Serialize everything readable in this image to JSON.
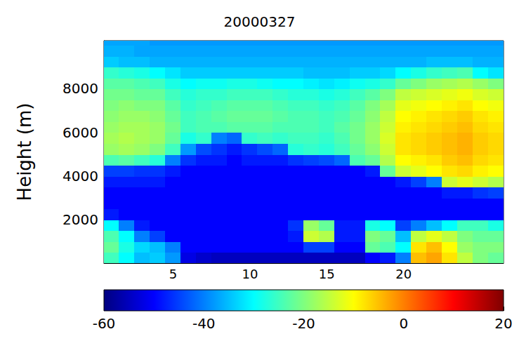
{
  "chart_data": {
    "type": "heatmap",
    "title": "20000327",
    "ylabel": "Height (m)",
    "xlim": [
      0.5,
      26.5
    ],
    "xticks": [
      5,
      10,
      15,
      20
    ],
    "ylim": [
      0,
      10200
    ],
    "yticks": [
      2000,
      4000,
      6000,
      8000
    ],
    "grid": false,
    "colorbar": {
      "range": [
        -60,
        20
      ],
      "ticks": [
        -60,
        -40,
        -20,
        0,
        20
      ]
    },
    "cells": {
      "x": [
        1,
        2,
        3,
        4,
        5,
        6,
        7,
        8,
        9,
        10,
        11,
        12,
        13,
        14,
        15,
        16,
        17,
        18,
        19,
        20,
        21,
        22,
        23,
        24,
        25,
        26
      ],
      "y": [
        250,
        750,
        1250,
        1750,
        2250,
        2750,
        3250,
        3750,
        4250,
        4750,
        5250,
        5750,
        6250,
        6750,
        7250,
        7750,
        8250,
        8750,
        9250,
        9750,
        10250
      ],
      "z": [
        [
          -25,
          -22,
          -24,
          -30,
          -48,
          -50,
          -50,
          -48,
          -45,
          -24,
          -18,
          -17,
          -18,
          -19,
          -20,
          -21,
          -23,
          -26,
          -34,
          -36,
          -37
        ],
        [
          -30,
          -28,
          -30,
          -40,
          -50,
          -50,
          -50,
          -48,
          -45,
          -23,
          -17,
          -16,
          -17,
          -18,
          -19,
          -21,
          -23,
          -27,
          -35,
          -36,
          -37
        ],
        [
          -35,
          -33,
          -40,
          -48,
          -50,
          -50,
          -50,
          -48,
          -46,
          -25,
          -18,
          -17,
          -17,
          -18,
          -20,
          -22,
          -24,
          -28,
          -35,
          -37,
          -37
        ],
        [
          -34,
          -35,
          -45,
          -50,
          -50,
          -50,
          -50,
          -48,
          -46,
          -27,
          -20,
          -18,
          -18,
          -19,
          -20,
          -22,
          -25,
          -30,
          -36,
          -37,
          -38
        ],
        [
          -38,
          -40,
          -50,
          -50,
          -50,
          -50,
          -50,
          -50,
          -48,
          -40,
          -25,
          -22,
          -21,
          -22,
          -23,
          -25,
          -28,
          -32,
          -36,
          -37,
          -38
        ],
        [
          -52,
          -50,
          -50,
          -50,
          -50,
          -50,
          -50,
          -50,
          -50,
          -46,
          -38,
          -28,
          -25,
          -25,
          -26,
          -27,
          -30,
          -34,
          -36,
          -37,
          -38
        ],
        [
          -54,
          -50,
          -50,
          -50,
          -50,
          -50,
          -50,
          -50,
          -50,
          -48,
          -44,
          -26,
          -24,
          -24,
          -25,
          -26,
          -29,
          -34,
          -36,
          -37,
          -38
        ],
        [
          -55,
          -50,
          -50,
          -50,
          -50,
          -50,
          -50,
          -50,
          -50,
          -48,
          -46,
          -40,
          -24,
          -23,
          -24,
          -26,
          -29,
          -34,
          -36,
          -37,
          -38
        ],
        [
          -55,
          -50,
          -50,
          -50,
          -50,
          -50,
          -50,
          -50,
          -50,
          -50,
          -48,
          -42,
          -23,
          -22,
          -23,
          -25,
          -28,
          -34,
          -36,
          -37,
          -38
        ],
        [
          -55,
          -50,
          -50,
          -50,
          -50,
          -50,
          -50,
          -50,
          -50,
          -48,
          -46,
          -26,
          -23,
          -22,
          -23,
          -25,
          -28,
          -34,
          -36,
          -37,
          -38
        ],
        [
          -55,
          -50,
          -50,
          -50,
          -50,
          -50,
          -50,
          -50,
          -50,
          -48,
          -44,
          -25,
          -23,
          -22,
          -23,
          -25,
          -29,
          -34,
          -36,
          -37,
          -38
        ],
        [
          -55,
          -50,
          -50,
          -50,
          -50,
          -50,
          -50,
          -50,
          -50,
          -48,
          -42,
          -26,
          -24,
          -23,
          -24,
          -26,
          -30,
          -34,
          -36,
          -37,
          -38
        ],
        [
          -55,
          -50,
          -48,
          -46,
          -50,
          -50,
          -50,
          -50,
          -50,
          -46,
          -27,
          -25,
          -24,
          -24,
          -25,
          -27,
          -30,
          -34,
          -36,
          -37,
          -38
        ],
        [
          -55,
          -45,
          -14,
          -18,
          -50,
          -50,
          -50,
          -50,
          -50,
          -45,
          -26,
          -25,
          -24,
          -24,
          -25,
          -27,
          -31,
          -35,
          -36,
          -37,
          -38
        ],
        [
          -55,
          -45,
          -16,
          -22,
          -50,
          -50,
          -50,
          -50,
          -50,
          -44,
          -27,
          -26,
          -25,
          -25,
          -26,
          -28,
          -32,
          -35,
          -36,
          -37,
          -38
        ],
        [
          -55,
          -50,
          -48,
          -48,
          -50,
          -50,
          -50,
          -50,
          -50,
          -42,
          -25,
          -24,
          -23,
          -24,
          -25,
          -27,
          -31,
          -35,
          -36,
          -37,
          -38
        ],
        [
          -55,
          -50,
          -48,
          -48,
          -50,
          -50,
          -50,
          -50,
          -50,
          -24,
          -22,
          -21,
          -21,
          -22,
          -23,
          -25,
          -29,
          -34,
          -36,
          -37,
          -38
        ],
        [
          -50,
          -22,
          -20,
          -28,
          -50,
          -50,
          -50,
          -50,
          -48,
          -22,
          -19,
          -18,
          -18,
          -19,
          -20,
          -23,
          -28,
          -34,
          -36,
          -37,
          -38
        ],
        [
          -48,
          -24,
          -22,
          -30,
          -50,
          -50,
          -50,
          -50,
          -22,
          -16,
          -14,
          -13,
          -14,
          -15,
          -17,
          -20,
          -26,
          -33,
          -36,
          -37,
          -38
        ],
        [
          -40,
          -30,
          -35,
          -45,
          -50,
          -50,
          -50,
          -48,
          -14,
          -10,
          -8,
          -8,
          -9,
          -10,
          -12,
          -15,
          -22,
          -30,
          -36,
          -37,
          -38
        ],
        [
          -5,
          -8,
          -15,
          -40,
          -50,
          -50,
          -50,
          -45,
          -12,
          -9,
          -7,
          -7,
          -8,
          -9,
          -11,
          -14,
          -20,
          -28,
          -36,
          -37,
          -38
        ],
        [
          -3,
          -5,
          -12,
          -35,
          -50,
          -50,
          -50,
          -40,
          -10,
          -8,
          -6,
          -6,
          -7,
          -8,
          -10,
          -13,
          -18,
          -26,
          -35,
          -37,
          -38
        ],
        [
          -8,
          -10,
          -15,
          -30,
          -50,
          -50,
          -48,
          -14,
          -8,
          -6,
          -5,
          -5,
          -6,
          -7,
          -9,
          -12,
          -17,
          -25,
          -35,
          -37,
          -38
        ],
        [
          -15,
          -18,
          -20,
          -25,
          -50,
          -50,
          -48,
          -12,
          -7,
          -5,
          -4,
          -4,
          -5,
          -6,
          -8,
          -11,
          -16,
          -24,
          -35,
          -37,
          -38
        ],
        [
          -20,
          -20,
          -22,
          -25,
          -50,
          -50,
          -46,
          -14,
          -9,
          -7,
          -6,
          -6,
          -7,
          -8,
          -10,
          -13,
          -18,
          -30,
          -36,
          -37,
          -38
        ],
        [
          -22,
          -20,
          -22,
          -28,
          -50,
          -50,
          -45,
          -16,
          -10,
          -8,
          -7,
          -7,
          -8,
          -9,
          -11,
          -14,
          -20,
          -32,
          -36,
          -37,
          -38
        ]
      ]
    }
  }
}
